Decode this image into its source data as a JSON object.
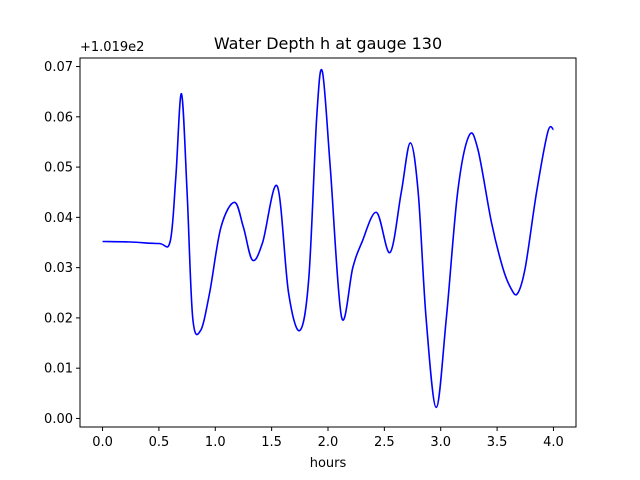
{
  "chart_data": {
    "type": "line",
    "title": "Water Depth h at gauge 130",
    "xlabel": "hours",
    "ylabel": "",
    "y_offset_label": "+1.019e2",
    "xlim": [
      -0.2,
      4.2
    ],
    "ylim": [
      -0.0017,
      0.0717
    ],
    "xticks": [
      0.0,
      0.5,
      1.0,
      1.5,
      2.0,
      2.5,
      3.0,
      3.5,
      4.0
    ],
    "xtick_labels": [
      "0.0",
      "0.5",
      "1.0",
      "1.5",
      "2.0",
      "2.5",
      "3.0",
      "3.5",
      "4.0"
    ],
    "yticks": [
      0.0,
      0.01,
      0.02,
      0.03,
      0.04,
      0.05,
      0.06,
      0.07
    ],
    "ytick_labels": [
      "0.00",
      "0.01",
      "0.02",
      "0.03",
      "0.04",
      "0.05",
      "0.06",
      "0.07"
    ],
    "grid": false,
    "series": [
      {
        "color": "#0000ff",
        "x": [
          0.0,
          0.25,
          0.5,
          0.6,
          0.65,
          0.7,
          0.75,
          0.8,
          0.87,
          0.95,
          1.05,
          1.17,
          1.25,
          1.33,
          1.42,
          1.55,
          1.65,
          1.75,
          1.83,
          1.9,
          1.95,
          2.02,
          2.12,
          2.22,
          2.3,
          2.43,
          2.55,
          2.65,
          2.73,
          2.8,
          2.87,
          2.96,
          3.05,
          3.15,
          3.25,
          3.33,
          3.45,
          3.55,
          3.62,
          3.68,
          3.75,
          3.85,
          3.95,
          4.0
        ],
        "y": [
          0.0352,
          0.0351,
          0.0348,
          0.0352,
          0.048,
          0.0646,
          0.045,
          0.02,
          0.0175,
          0.025,
          0.038,
          0.043,
          0.038,
          0.0315,
          0.035,
          0.0462,
          0.025,
          0.0175,
          0.028,
          0.06,
          0.069,
          0.05,
          0.0202,
          0.03,
          0.035,
          0.041,
          0.033,
          0.045,
          0.0548,
          0.045,
          0.02,
          0.0022,
          0.02,
          0.045,
          0.0562,
          0.0535,
          0.039,
          0.03,
          0.026,
          0.0248,
          0.03,
          0.045,
          0.057,
          0.0575
        ]
      }
    ]
  }
}
